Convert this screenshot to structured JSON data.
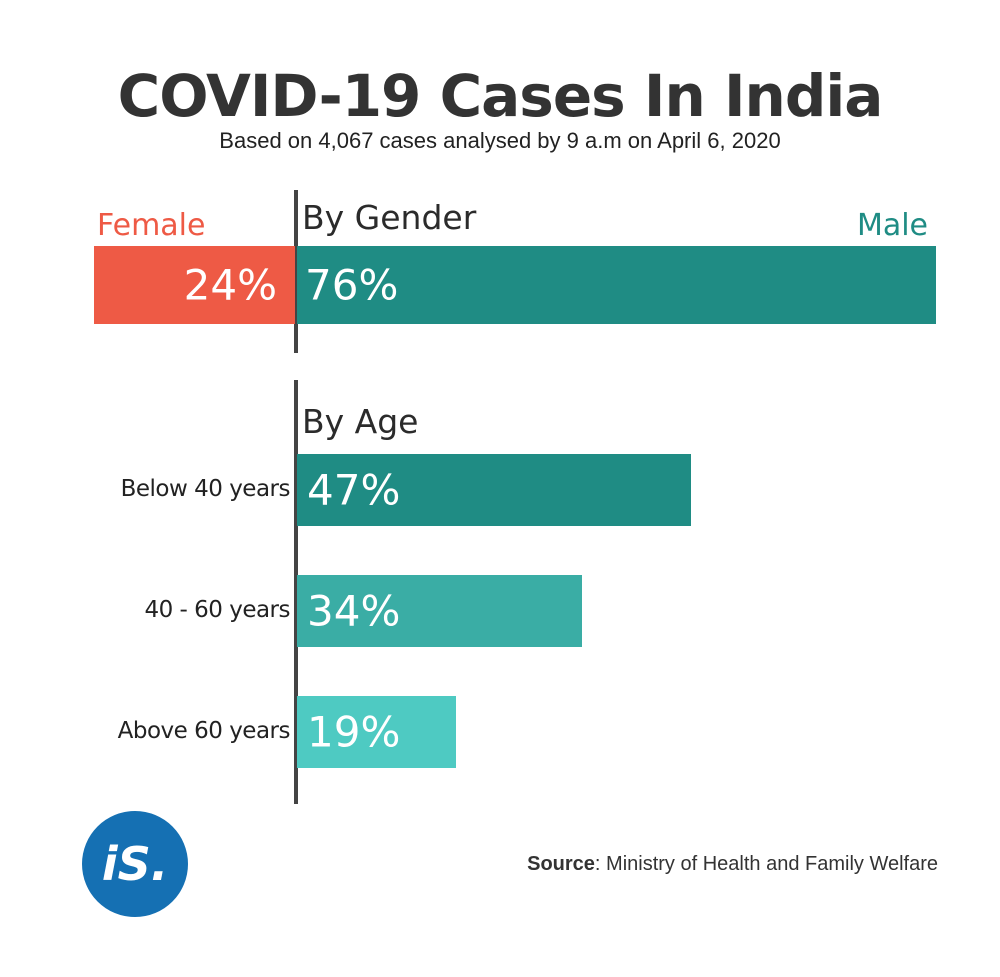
{
  "chart_data": [
    {
      "type": "bar",
      "title": "COVID-19 Cases In India",
      "subtitle": "Based on 4,067 cases analysed by 9 a.m on April 6, 2020",
      "section": "By Gender",
      "categories": [
        "Female",
        "Male"
      ],
      "values": [
        24,
        76
      ],
      "labels": [
        "24%",
        "76%"
      ],
      "colors": [
        "#EE5A45",
        "#1F8C84"
      ]
    },
    {
      "type": "bar",
      "section": "By Age",
      "categories": [
        "Below 40 years",
        "40 - 60 years",
        "Above 60 years"
      ],
      "values": [
        47,
        34,
        19
      ],
      "labels": [
        "47%",
        "34%",
        "19%"
      ],
      "colors": [
        "#1F8C84",
        "#3AADA5",
        "#4ECAC2"
      ]
    }
  ],
  "source_label": "Source",
  "source_text": ": Ministry of Health and Family Welfare",
  "logo_text": "iS."
}
